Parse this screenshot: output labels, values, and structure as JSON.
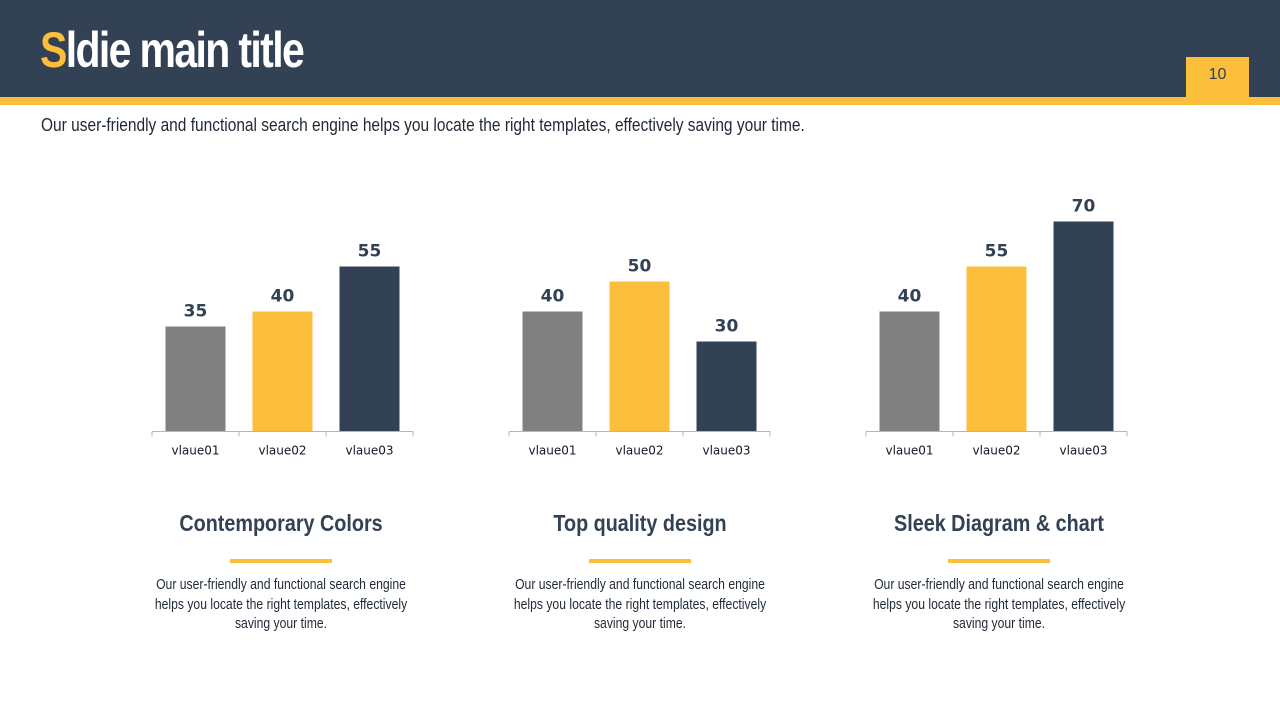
{
  "slide": {
    "title_first": "S",
    "title_rest": "ldie main title",
    "page_number": "10",
    "subtitle": "Our user-friendly and functional search engine helps you locate the right templates, effectively saving your time."
  },
  "colors": {
    "navy": "#334155",
    "yellow": "#FBBF3B",
    "gray": "#808080"
  },
  "chart_data": [
    {
      "type": "bar",
      "title": "",
      "categories": [
        "vlaue01",
        "vlaue02",
        "vlaue03"
      ],
      "values": [
        35,
        40,
        55
      ],
      "bar_colors": [
        "#808080",
        "#FBBF3B",
        "#334155"
      ],
      "ylim": [
        0,
        70
      ],
      "grid": false,
      "legend": "none"
    },
    {
      "type": "bar",
      "title": "",
      "categories": [
        "vlaue01",
        "vlaue02",
        "vlaue03"
      ],
      "values": [
        40,
        50,
        30
      ],
      "bar_colors": [
        "#808080",
        "#FBBF3B",
        "#334155"
      ],
      "ylim": [
        0,
        70
      ],
      "grid": false,
      "legend": "none"
    },
    {
      "type": "bar",
      "title": "",
      "categories": [
        "vlaue01",
        "vlaue02",
        "vlaue03"
      ],
      "values": [
        40,
        55,
        70
      ],
      "bar_colors": [
        "#808080",
        "#FBBF3B",
        "#334155"
      ],
      "ylim": [
        0,
        70
      ],
      "grid": false,
      "legend": "none"
    }
  ],
  "features": [
    {
      "title": "Contemporary Colors",
      "description": "Our user-friendly and functional search engine helps you locate the right templates, effectively saving your time."
    },
    {
      "title": "Top quality design",
      "description": "Our user-friendly and functional search engine helps you locate the right templates, effectively saving your time."
    },
    {
      "title": "Sleek Diagram & chart",
      "description": "Our user-friendly and functional search engine helps you locate the right templates, effectively saving your time."
    }
  ]
}
